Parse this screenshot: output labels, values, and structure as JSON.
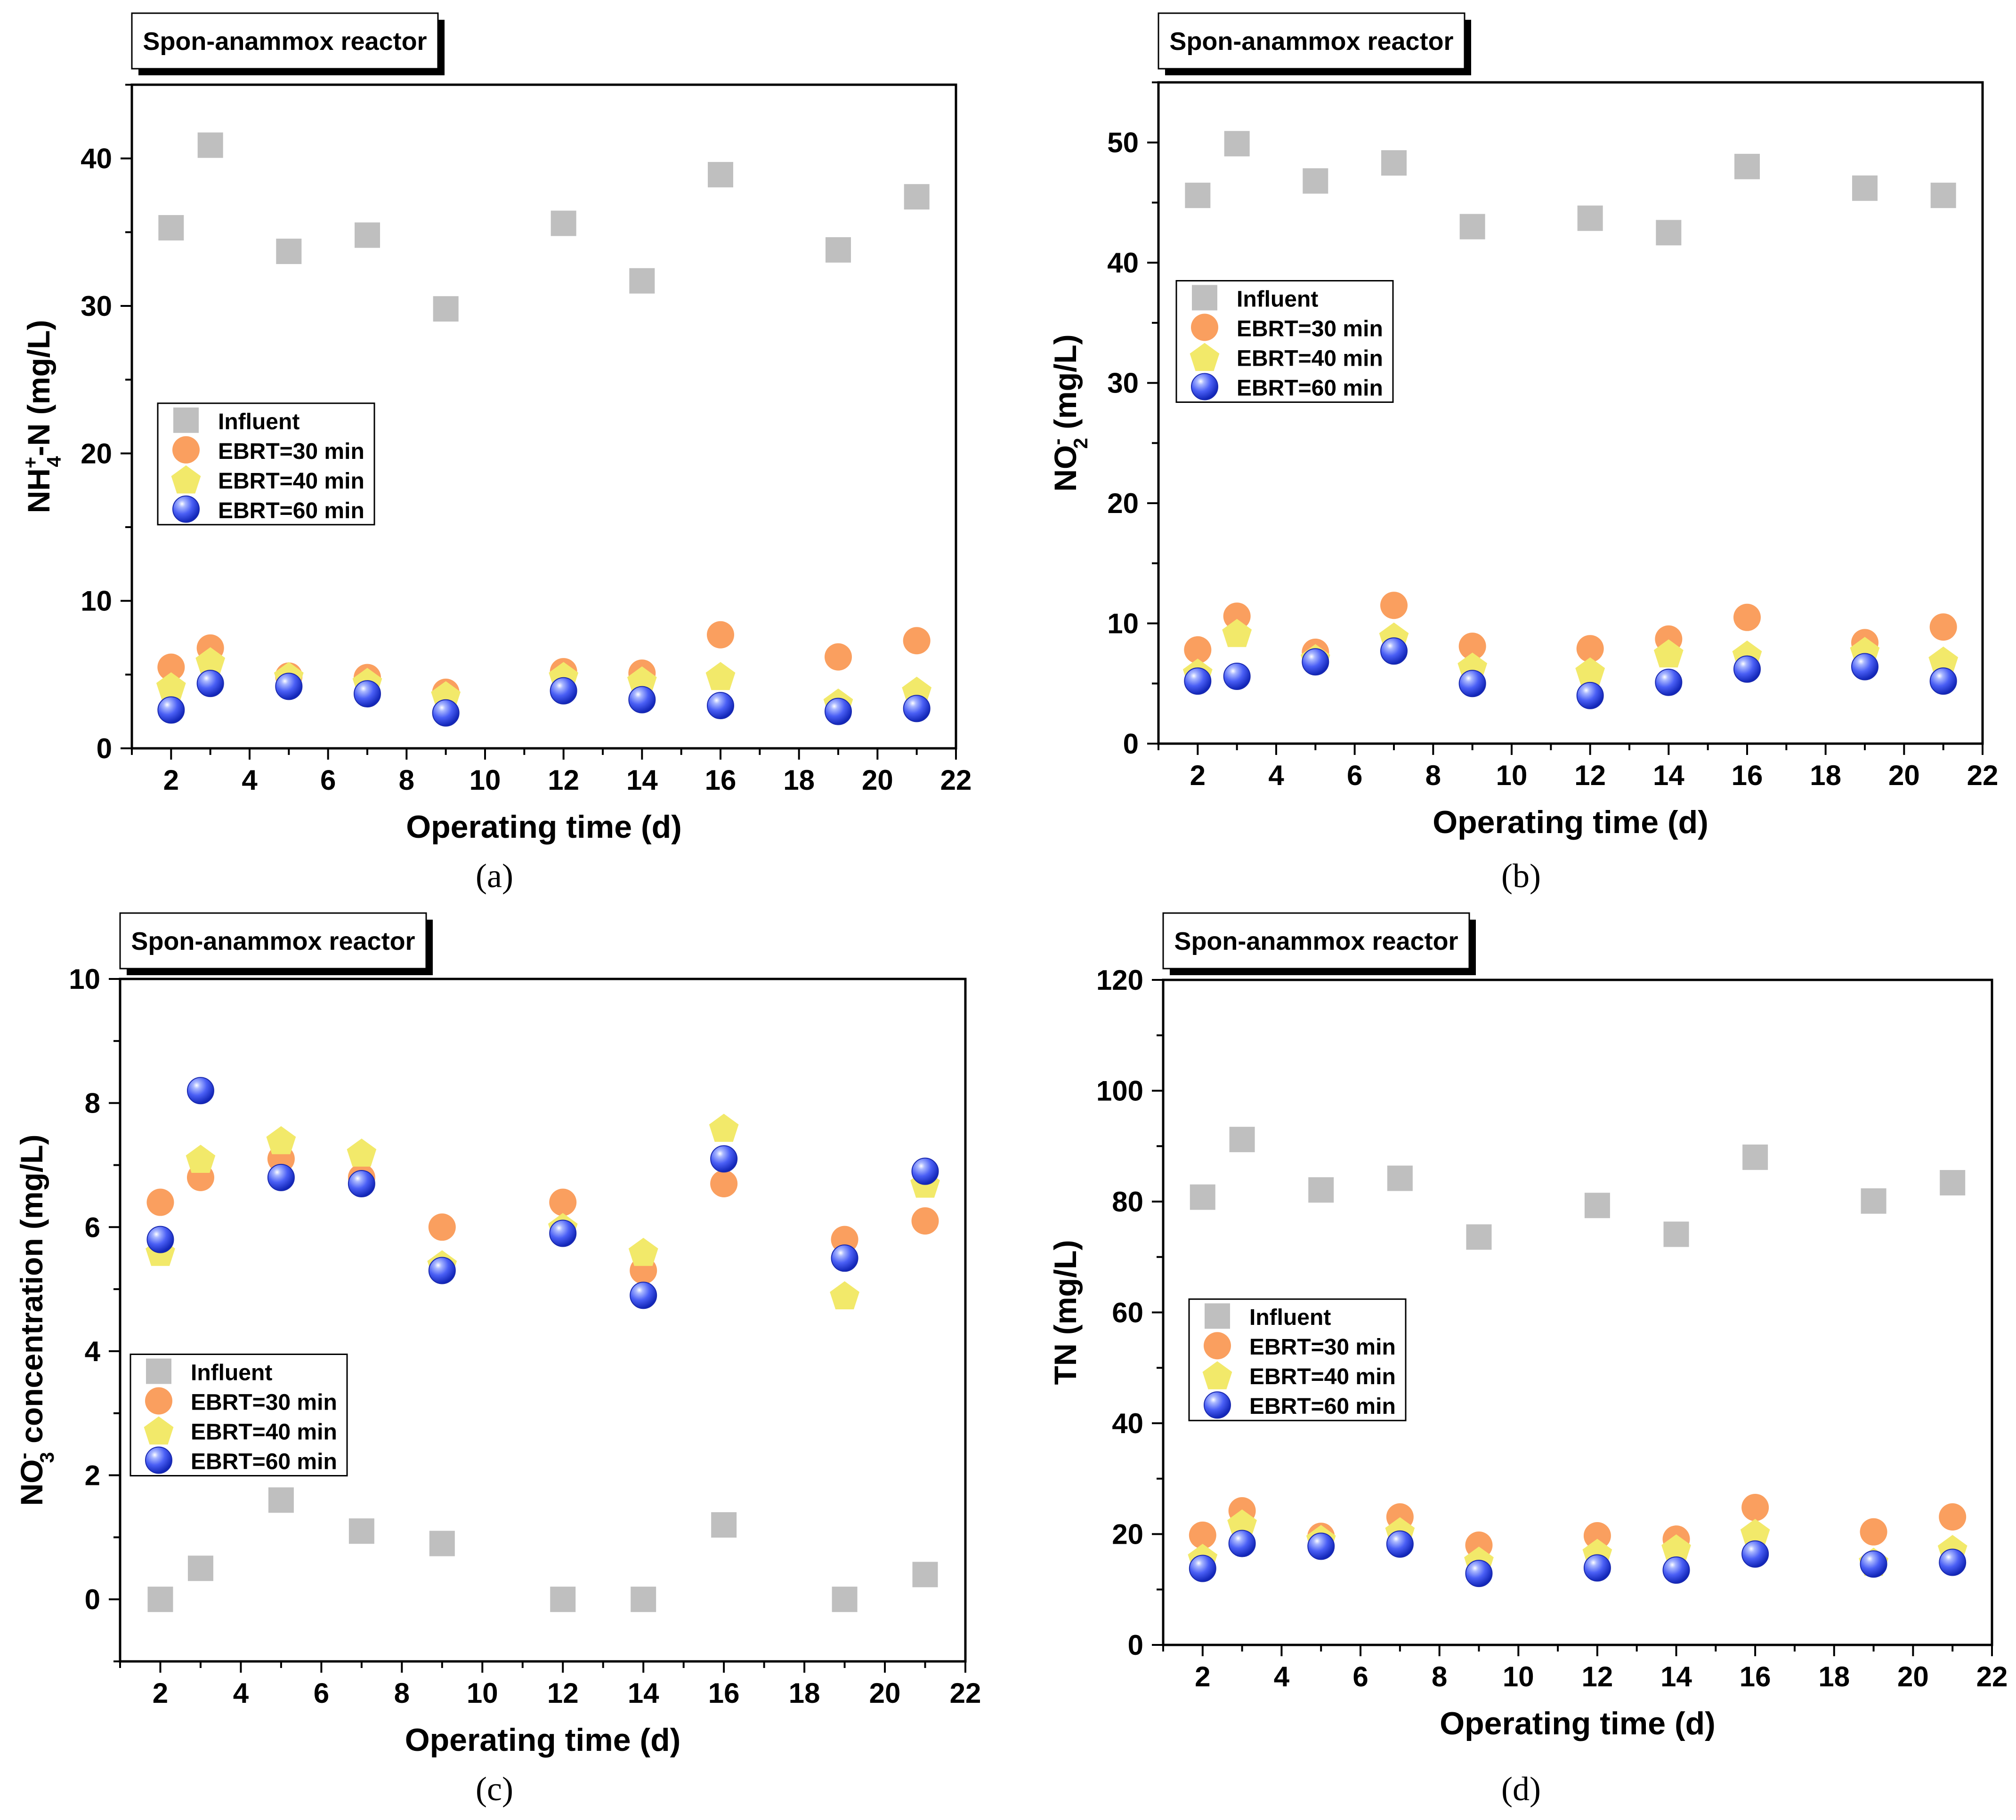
{
  "colors": {
    "influent": "#bfbfbf",
    "ebrt30": "#fa9f5f",
    "ebrt40": "#f2e96a",
    "ebrt60": "#3d55f0",
    "axis": "#000000",
    "background": "#ffffff"
  },
  "chart_data": [
    {
      "type": "scatter",
      "panel_label": "(a)",
      "title": "Spon-anammox reactor",
      "xlabel": "Operating time (d)",
      "ylabel_main": "NH",
      "ylabel_sup": "+",
      "ylabel_sub": "4",
      "ylabel_tail": "-N  (mg/L)",
      "xlim": [
        1,
        22
      ],
      "ylim": [
        0,
        45
      ],
      "xticks": [
        2,
        4,
        6,
        8,
        10,
        12,
        14,
        16,
        18,
        20,
        22
      ],
      "xtick_labels": [
        "2",
        "4",
        "6",
        "8",
        "10",
        "12",
        "14",
        "16",
        "18",
        "20",
        "22"
      ],
      "yticks": [
        0,
        10,
        20,
        30,
        40
      ],
      "ytick_labels": [
        "0",
        "10",
        "20",
        "30",
        "40"
      ],
      "y_minor": 5,
      "legend_position": "middle-left",
      "x": [
        2,
        3,
        5,
        7,
        9,
        12,
        14,
        16,
        19,
        21
      ],
      "series": [
        {
          "name": "Influent",
          "marker": "square",
          "values": [
            35.3,
            40.9,
            33.7,
            34.8,
            29.8,
            35.6,
            31.7,
            38.9,
            33.8,
            37.4
          ]
        },
        {
          "name": "EBRT=30 min",
          "marker": "circle",
          "values": [
            5.5,
            6.8,
            4.9,
            4.8,
            3.8,
            5.2,
            5.1,
            7.7,
            6.2,
            7.3
          ]
        },
        {
          "name": "EBRT=40 min",
          "marker": "pentagon",
          "values": [
            4.2,
            5.9,
            4.9,
            4.5,
            3.6,
            4.9,
            4.6,
            4.9,
            3.1,
            3.9
          ]
        },
        {
          "name": "EBRT=60 min",
          "marker": "sphere",
          "values": [
            2.6,
            4.4,
            4.2,
            3.7,
            2.4,
            3.9,
            3.3,
            2.9,
            2.5,
            2.7
          ]
        }
      ]
    },
    {
      "type": "scatter",
      "panel_label": "(b)",
      "title": "Spon-anammox reactor",
      "xlabel": "Operating time (d)",
      "ylabel_main": "NO",
      "ylabel_sup": "-",
      "ylabel_sub": "2",
      "ylabel_tail": "  (mg/L)",
      "xlim": [
        1,
        22
      ],
      "ylim": [
        0,
        55
      ],
      "xticks": [
        2,
        4,
        6,
        8,
        10,
        12,
        14,
        16,
        18,
        20,
        22
      ],
      "xtick_labels": [
        "2",
        "4",
        "6",
        "8",
        "10",
        "12",
        "14",
        "16",
        "18",
        "20",
        "22"
      ],
      "yticks": [
        0,
        10,
        20,
        30,
        40,
        50
      ],
      "ytick_labels": [
        "0",
        "10",
        "20",
        "30",
        "40",
        "50"
      ],
      "y_minor": 5,
      "legend_position": "upper-left",
      "x": [
        2,
        3,
        5,
        7,
        9,
        12,
        14,
        16,
        19,
        21
      ],
      "series": [
        {
          "name": "Influent",
          "marker": "square",
          "values": [
            45.6,
            49.9,
            46.8,
            48.3,
            43.0,
            43.7,
            42.5,
            48.0,
            46.2,
            45.6
          ]
        },
        {
          "name": "EBRT=30 min",
          "marker": "circle",
          "values": [
            7.8,
            10.6,
            7.6,
            11.5,
            8.1,
            7.9,
            8.7,
            10.5,
            8.4,
            9.7
          ]
        },
        {
          "name": "EBRT=40 min",
          "marker": "pentagon",
          "values": [
            5.9,
            9.2,
            7.1,
            8.9,
            6.4,
            6.0,
            7.5,
            7.4,
            7.7,
            6.9
          ]
        },
        {
          "name": "EBRT=60 min",
          "marker": "sphere",
          "values": [
            5.2,
            5.6,
            6.8,
            7.7,
            5.0,
            4.0,
            5.1,
            6.2,
            6.4,
            5.2
          ]
        }
      ]
    },
    {
      "type": "scatter",
      "panel_label": "(c)",
      "title": "Spon-anammox reactor",
      "xlabel": "Operating time (d)",
      "ylabel_main": "NO",
      "ylabel_sup": "-",
      "ylabel_sub": "3",
      "ylabel_tail": " concentration (mg/L)",
      "xlim": [
        1,
        22
      ],
      "ylim": [
        -1,
        10
      ],
      "xticks": [
        2,
        4,
        6,
        8,
        10,
        12,
        14,
        16,
        18,
        20,
        22
      ],
      "xtick_labels": [
        "2",
        "4",
        "6",
        "8",
        "10",
        "12",
        "14",
        "16",
        "18",
        "20",
        "22"
      ],
      "yticks": [
        0,
        2,
        4,
        6,
        8,
        10
      ],
      "ytick_labels": [
        "0",
        "2",
        "4",
        "6",
        "8",
        "10"
      ],
      "y_minor": 1,
      "legend_position": "lower-left",
      "x": [
        2,
        3,
        5,
        7,
        9,
        12,
        14,
        16,
        19,
        21
      ],
      "series": [
        {
          "name": "Influent",
          "marker": "square",
          "values": [
            0.0,
            0.5,
            1.6,
            1.1,
            0.9,
            0.0,
            0.0,
            1.2,
            0.0,
            0.4
          ]
        },
        {
          "name": "EBRT=30 min",
          "marker": "circle",
          "values": [
            6.4,
            6.8,
            7.1,
            6.8,
            6.0,
            6.4,
            5.3,
            6.7,
            5.8,
            6.1
          ]
        },
        {
          "name": "EBRT=40 min",
          "marker": "pentagon",
          "values": [
            5.6,
            7.1,
            7.4,
            7.2,
            5.4,
            6.0,
            5.6,
            7.6,
            4.9,
            6.7
          ]
        },
        {
          "name": "EBRT=60 min",
          "marker": "sphere",
          "values": [
            5.8,
            8.2,
            6.8,
            6.7,
            5.3,
            5.9,
            4.9,
            7.1,
            5.5,
            6.9
          ]
        }
      ]
    },
    {
      "type": "scatter",
      "panel_label": "(d)",
      "title": "Spon-anammox reactor",
      "xlabel": "Operating time (d)",
      "ylabel_main": "TN (mg/L)",
      "ylabel_sup": "",
      "ylabel_sub": "",
      "ylabel_tail": "",
      "xlim": [
        1,
        22
      ],
      "ylim": [
        0,
        120
      ],
      "xticks": [
        2,
        4,
        6,
        8,
        10,
        12,
        14,
        16,
        18,
        20,
        22
      ],
      "xtick_labels": [
        "2",
        "4",
        "6",
        "8",
        "10",
        "12",
        "14",
        "16",
        "18",
        "20",
        "22"
      ],
      "yticks": [
        0,
        20,
        40,
        60,
        80,
        100,
        120
      ],
      "ytick_labels": [
        "0",
        "20",
        "40",
        "60",
        "80",
        "100",
        "120"
      ],
      "y_minor": 10,
      "legend_position": "middle-left",
      "x": [
        2,
        3,
        5,
        7,
        9,
        12,
        14,
        16,
        19,
        21
      ],
      "series": [
        {
          "name": "Influent",
          "marker": "square",
          "values": [
            80.8,
            91.2,
            82.1,
            84.2,
            73.6,
            79.3,
            74.1,
            88.0,
            80.1,
            83.4
          ]
        },
        {
          "name": "EBRT=30 min",
          "marker": "circle",
          "values": [
            19.8,
            24.2,
            19.6,
            23.1,
            18.0,
            19.7,
            19.1,
            24.8,
            20.4,
            23.1
          ]
        },
        {
          "name": "EBRT=40 min",
          "marker": "pentagon",
          "values": [
            15.7,
            21.9,
            19.1,
            20.5,
            15.2,
            16.6,
            17.4,
            20.2,
            15.0,
            17.3
          ]
        },
        {
          "name": "EBRT=60 min",
          "marker": "sphere",
          "values": [
            13.8,
            18.3,
            17.8,
            18.2,
            12.9,
            13.9,
            13.5,
            16.4,
            14.6,
            14.9
          ]
        }
      ]
    }
  ]
}
